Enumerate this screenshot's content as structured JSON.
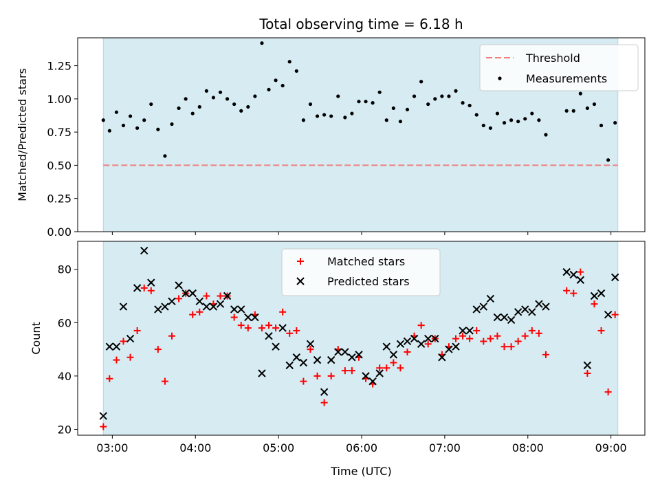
{
  "chart_data": {
    "title": "Total observing time = 6.18 h",
    "x_axis": {
      "label": "Time (UTC)",
      "unit": "minutes past 00:00 UTC",
      "range": [
        155.0,
        564.5
      ],
      "ticks": [
        {
          "value": 180,
          "label": "03:00"
        },
        {
          "value": 240,
          "label": "04:00"
        },
        {
          "value": 300,
          "label": "05:00"
        },
        {
          "value": 360,
          "label": "06:00"
        },
        {
          "value": 420,
          "label": "07:00"
        },
        {
          "value": 480,
          "label": "08:00"
        },
        {
          "value": 540,
          "label": "09:00"
        }
      ]
    },
    "observing_window": [
      173.5,
      545.0
    ],
    "panels": [
      {
        "type": "scatter",
        "ylabel": "Matched/Predicted stars",
        "ylim": [
          0.0,
          1.46
        ],
        "yticks": [
          "0.00",
          "0.25",
          "0.50",
          "0.75",
          "1.00",
          "1.25"
        ],
        "grid": false,
        "legend_position": "top-right",
        "threshold": {
          "name": "Threshold",
          "value": 0.5,
          "color": "#f08080"
        },
        "series": [
          {
            "name": "Measurements",
            "color": "#000000",
            "marker": "dot",
            "points": [
              [
                173.5,
                0.84
              ],
              [
                178,
                0.76
              ],
              [
                183,
                0.9
              ],
              [
                188,
                0.8
              ],
              [
                193,
                0.87
              ],
              [
                198,
                0.78
              ],
              [
                203,
                0.84
              ],
              [
                208,
                0.96
              ],
              [
                213,
                0.77
              ],
              [
                218,
                0.57
              ],
              [
                223,
                0.81
              ],
              [
                228,
                0.93
              ],
              [
                233,
                1.0
              ],
              [
                238,
                0.89
              ],
              [
                243,
                0.94
              ],
              [
                248,
                1.06
              ],
              [
                253,
                1.01
              ],
              [
                258,
                1.05
              ],
              [
                263,
                1.0
              ],
              [
                268,
                0.96
              ],
              [
                273,
                0.91
              ],
              [
                278,
                0.94
              ],
              [
                283,
                1.02
              ],
              [
                288,
                1.42
              ],
              [
                293,
                1.07
              ],
              [
                298,
                1.14
              ],
              [
                303,
                1.1
              ],
              [
                308,
                1.28
              ],
              [
                313,
                1.21
              ],
              [
                318,
                0.84
              ],
              [
                323,
                0.96
              ],
              [
                328,
                0.87
              ],
              [
                333,
                0.88
              ],
              [
                338,
                0.87
              ],
              [
                343,
                1.02
              ],
              [
                348,
                0.86
              ],
              [
                353,
                0.89
              ],
              [
                358,
                0.98
              ],
              [
                363,
                0.98
              ],
              [
                368,
                0.97
              ],
              [
                373,
                1.05
              ],
              [
                378,
                0.84
              ],
              [
                383,
                0.93
              ],
              [
                388,
                0.83
              ],
              [
                393,
                0.92
              ],
              [
                398,
                1.02
              ],
              [
                403,
                1.13
              ],
              [
                408,
                0.96
              ],
              [
                413,
                1.0
              ],
              [
                418,
                1.02
              ],
              [
                423,
                1.02
              ],
              [
                428,
                1.06
              ],
              [
                433,
                0.97
              ],
              [
                438,
                0.95
              ],
              [
                443,
                0.88
              ],
              [
                448,
                0.8
              ],
              [
                453,
                0.78
              ],
              [
                458,
                0.89
              ],
              [
                463,
                0.82
              ],
              [
                468,
                0.84
              ],
              [
                473,
                0.83
              ],
              [
                478,
                0.85
              ],
              [
                483,
                0.89
              ],
              [
                488,
                0.84
              ],
              [
                493,
                0.73
              ],
              [
                508,
                0.91
              ],
              [
                513,
                0.91
              ],
              [
                518,
                1.04
              ],
              [
                523,
                0.93
              ],
              [
                528,
                0.96
              ],
              [
                533,
                0.8
              ],
              [
                538,
                0.54
              ],
              [
                543,
                0.82
              ]
            ]
          }
        ]
      },
      {
        "type": "scatter",
        "ylabel": "Count",
        "ylim": [
          17.8,
          90.5
        ],
        "yticks": [
          "20",
          "40",
          "60",
          "80"
        ],
        "grid": false,
        "legend_position": "upper-center",
        "series": [
          {
            "name": "Matched stars",
            "color": "#ff0000",
            "marker": "plus",
            "points": [
              [
                173.5,
                21
              ],
              [
                178,
                39
              ],
              [
                183,
                46
              ],
              [
                188,
                53
              ],
              [
                193,
                47
              ],
              [
                198,
                57
              ],
              [
                203,
                73
              ],
              [
                208,
                72
              ],
              [
                213,
                50
              ],
              [
                218,
                38
              ],
              [
                223,
                55
              ],
              [
                228,
                69
              ],
              [
                233,
                71
              ],
              [
                238,
                63
              ],
              [
                243,
                64
              ],
              [
                248,
                70
              ],
              [
                253,
                67
              ],
              [
                258,
                70
              ],
              [
                263,
                70
              ],
              [
                268,
                62
              ],
              [
                273,
                59
              ],
              [
                278,
                58
              ],
              [
                283,
                63
              ],
              [
                288,
                58
              ],
              [
                293,
                59
              ],
              [
                298,
                58
              ],
              [
                303,
                64
              ],
              [
                308,
                56
              ],
              [
                313,
                57
              ],
              [
                318,
                38
              ],
              [
                323,
                50
              ],
              [
                328,
                40
              ],
              [
                333,
                30
              ],
              [
                338,
                40
              ],
              [
                343,
                50
              ],
              [
                348,
                42
              ],
              [
                353,
                42
              ],
              [
                358,
                47
              ],
              [
                363,
                39
              ],
              [
                368,
                37
              ],
              [
                373,
                43
              ],
              [
                378,
                43
              ],
              [
                383,
                45
              ],
              [
                388,
                43
              ],
              [
                393,
                49
              ],
              [
                398,
                55
              ],
              [
                403,
                59
              ],
              [
                408,
                52
              ],
              [
                413,
                54
              ],
              [
                418,
                48
              ],
              [
                423,
                51
              ],
              [
                428,
                54
              ],
              [
                433,
                55
              ],
              [
                438,
                54
              ],
              [
                443,
                57
              ],
              [
                448,
                53
              ],
              [
                453,
                54
              ],
              [
                458,
                55
              ],
              [
                463,
                51
              ],
              [
                468,
                51
              ],
              [
                473,
                53
              ],
              [
                478,
                55
              ],
              [
                483,
                57
              ],
              [
                488,
                56
              ],
              [
                493,
                48
              ],
              [
                508,
                72
              ],
              [
                513,
                71
              ],
              [
                518,
                79
              ],
              [
                523,
                41
              ],
              [
                528,
                67
              ],
              [
                533,
                57
              ],
              [
                538,
                34
              ],
              [
                543,
                63
              ]
            ]
          },
          {
            "name": "Predicted stars",
            "color": "#000000",
            "marker": "x",
            "points": [
              [
                173.5,
                25
              ],
              [
                178,
                51
              ],
              [
                183,
                51
              ],
              [
                188,
                66
              ],
              [
                193,
                54
              ],
              [
                198,
                73
              ],
              [
                203,
                87
              ],
              [
                208,
                75
              ],
              [
                213,
                65
              ],
              [
                218,
                66
              ],
              [
                223,
                68
              ],
              [
                228,
                74
              ],
              [
                233,
                71
              ],
              [
                238,
                71
              ],
              [
                243,
                68
              ],
              [
                248,
                66
              ],
              [
                253,
                66
              ],
              [
                258,
                67
              ],
              [
                263,
                70
              ],
              [
                268,
                65
              ],
              [
                273,
                65
              ],
              [
                278,
                62
              ],
              [
                283,
                62
              ],
              [
                288,
                41
              ],
              [
                293,
                55
              ],
              [
                298,
                51
              ],
              [
                303,
                58
              ],
              [
                308,
                44
              ],
              [
                313,
                47
              ],
              [
                318,
                45
              ],
              [
                323,
                52
              ],
              [
                328,
                46
              ],
              [
                333,
                34
              ],
              [
                338,
                46
              ],
              [
                343,
                49
              ],
              [
                348,
                49
              ],
              [
                353,
                47
              ],
              [
                358,
                48
              ],
              [
                363,
                40
              ],
              [
                368,
                38
              ],
              [
                373,
                41
              ],
              [
                378,
                51
              ],
              [
                383,
                48
              ],
              [
                388,
                52
              ],
              [
                393,
                53
              ],
              [
                398,
                54
              ],
              [
                403,
                52
              ],
              [
                408,
                54
              ],
              [
                413,
                54
              ],
              [
                418,
                47
              ],
              [
                423,
                50
              ],
              [
                428,
                51
              ],
              [
                433,
                57
              ],
              [
                438,
                57
              ],
              [
                443,
                65
              ],
              [
                448,
                66
              ],
              [
                453,
                69
              ],
              [
                458,
                62
              ],
              [
                463,
                62
              ],
              [
                468,
                61
              ],
              [
                473,
                64
              ],
              [
                478,
                65
              ],
              [
                483,
                64
              ],
              [
                488,
                67
              ],
              [
                493,
                66
              ],
              [
                508,
                79
              ],
              [
                513,
                78
              ],
              [
                518,
                76
              ],
              [
                523,
                44
              ],
              [
                528,
                70
              ],
              [
                533,
                71
              ],
              [
                538,
                63
              ],
              [
                543,
                77
              ]
            ]
          }
        ]
      }
    ]
  }
}
